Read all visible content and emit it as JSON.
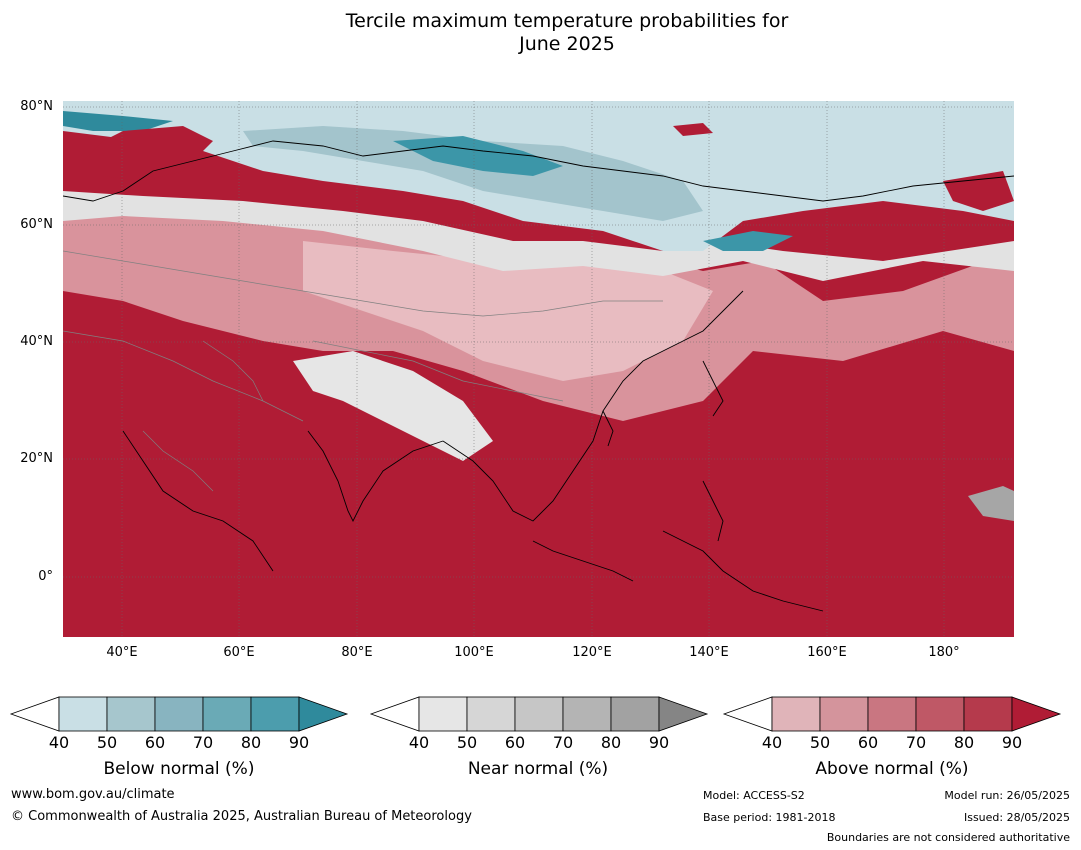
{
  "title_line1": "Tercile maximum temperature probabilities for",
  "title_line2": "June 2025",
  "map": {
    "lat_labels": [
      "80°N",
      "60°N",
      "40°N",
      "20°N",
      "0°"
    ],
    "lon_labels": [
      "40°E",
      "60°E",
      "80°E",
      "100°E",
      "120°E",
      "140°E",
      "160°E",
      "180°"
    ],
    "colors": {
      "above_strong": "#b01c35",
      "above_mid": "#c04e5e",
      "above_light": "#d9939c",
      "above_pale": "#e8bcc1",
      "near_pale": "#e2e2e2",
      "near_mid": "#c6c6c6",
      "below_pale": "#c9dfe5",
      "below_mid": "#a3c4cc",
      "below_strong": "#3c96a8",
      "coast": "#000000",
      "border": "#808080"
    }
  },
  "colorbars": [
    {
      "label": "Below normal (%)",
      "ticks": [
        "40",
        "50",
        "60",
        "70",
        "80",
        "90"
      ],
      "colors": [
        "#c9dfe5",
        "#a6c6cd",
        "#88b4c0",
        "#6aaab6",
        "#4c9dad",
        "#2f8a9c"
      ]
    },
    {
      "label": "Near normal (%)",
      "ticks": [
        "40",
        "50",
        "60",
        "70",
        "80",
        "90"
      ],
      "colors": [
        "#e6e6e6",
        "#d6d6d6",
        "#c6c6c6",
        "#b4b4b4",
        "#a2a2a2",
        "#858585"
      ]
    },
    {
      "label": "Above normal (%)",
      "ticks": [
        "40",
        "50",
        "60",
        "70",
        "80",
        "90"
      ],
      "colors": [
        "#e0b4b9",
        "#d4949c",
        "#c97681",
        "#bf5866",
        "#b53a4c",
        "#b01c35"
      ]
    }
  ],
  "footer": {
    "website": "www.bom.gov.au/climate",
    "copyright": "© Commonwealth of Australia 2025, Australian Bureau of Meteorology",
    "model": "Model: ACCESS-S2",
    "base_period": "Base period: 1981-2018",
    "model_run": "Model run: 26/05/2025",
    "issued": "Issued: 28/05/2025",
    "disclaimer": "Boundaries are not considered authoritative"
  }
}
